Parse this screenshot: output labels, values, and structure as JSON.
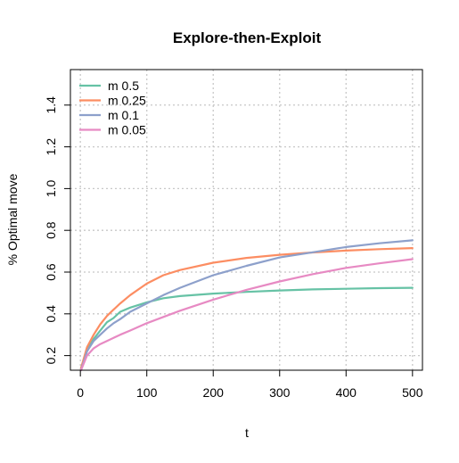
{
  "chart_data": {
    "type": "line",
    "title": "Explore-then-Exploit",
    "xlabel": "t",
    "ylabel": "% Optimal move",
    "xlim": [
      -15,
      515
    ],
    "ylim": [
      0.13,
      1.57
    ],
    "xticks": [
      0,
      100,
      200,
      300,
      400,
      500
    ],
    "yticks": [
      0.2,
      0.4,
      0.6,
      0.8,
      1.0,
      1.2,
      1.4
    ],
    "xtick_labels": [
      "0",
      "100",
      "200",
      "300",
      "400",
      "500"
    ],
    "ytick_labels": [
      "0.2",
      "0.4",
      "0.6",
      "0.8",
      "1.0",
      "1.2",
      "1.4"
    ],
    "grid": true,
    "legend_position": "top-left",
    "x": [
      1,
      10,
      20,
      30,
      40,
      50,
      60,
      75,
      100,
      125,
      150,
      200,
      250,
      300,
      350,
      400,
      450,
      500
    ],
    "series": [
      {
        "name": "m 0.5",
        "color": "#66c2a5",
        "values": [
          0.14,
          0.23,
          0.28,
          0.32,
          0.36,
          0.38,
          0.41,
          0.43,
          0.455,
          0.475,
          0.485,
          0.497,
          0.505,
          0.512,
          0.517,
          0.52,
          0.523,
          0.525
        ]
      },
      {
        "name": "m 0.25",
        "color": "#fc8d62",
        "values": [
          0.14,
          0.24,
          0.3,
          0.35,
          0.39,
          0.42,
          0.45,
          0.49,
          0.545,
          0.585,
          0.61,
          0.645,
          0.668,
          0.683,
          0.694,
          0.703,
          0.71,
          0.715
        ]
      },
      {
        "name": "m 0.1",
        "color": "#8da0cb",
        "values": [
          0.13,
          0.22,
          0.27,
          0.3,
          0.33,
          0.355,
          0.375,
          0.41,
          0.45,
          0.49,
          0.525,
          0.585,
          0.63,
          0.67,
          0.695,
          0.72,
          0.738,
          0.752
        ]
      },
      {
        "name": "m 0.05",
        "color": "#e78ac3",
        "values": [
          0.13,
          0.2,
          0.235,
          0.255,
          0.27,
          0.285,
          0.3,
          0.32,
          0.355,
          0.385,
          0.415,
          0.468,
          0.515,
          0.555,
          0.59,
          0.62,
          0.642,
          0.662
        ]
      }
    ]
  }
}
